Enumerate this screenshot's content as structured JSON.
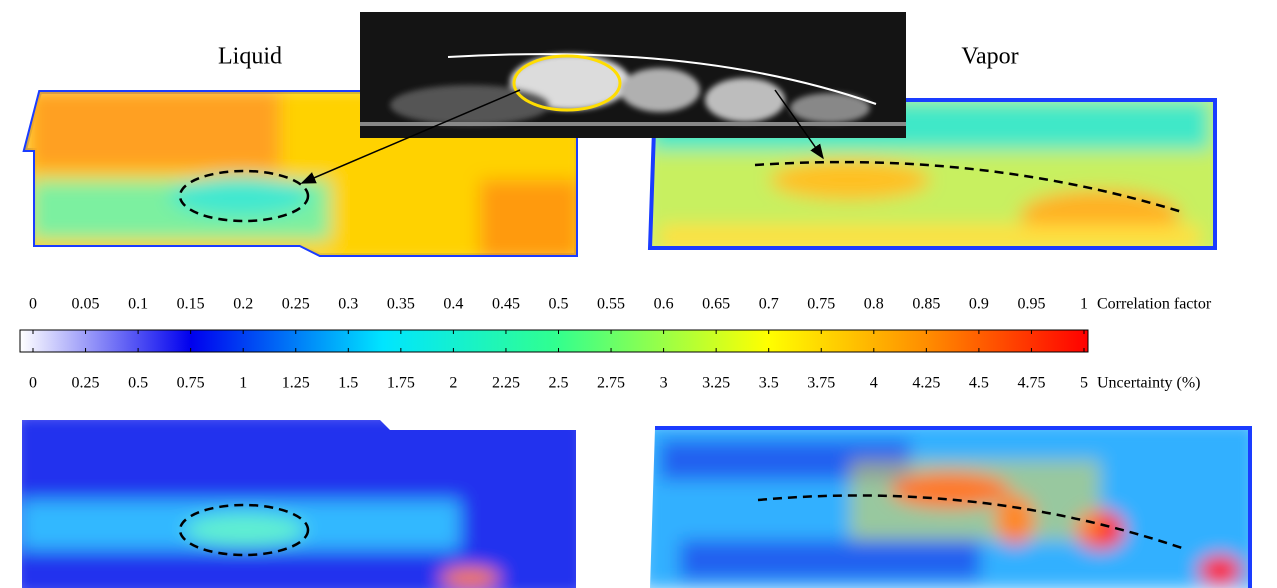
{
  "panels": {
    "left_title": "Liquid",
    "right_title": "Vapor"
  },
  "colorbar": {
    "top_label": "Correlation factor",
    "top_ticks": [
      0,
      0.05,
      0.1,
      0.15,
      0.2,
      0.25,
      0.3,
      0.35,
      0.4,
      0.45,
      0.5,
      0.55,
      0.6,
      0.65,
      0.7,
      0.75,
      0.8,
      0.85,
      0.9,
      0.95,
      1
    ],
    "bottom_label": "Uncertainty (%)",
    "bottom_ticks": [
      0,
      0.25,
      0.5,
      0.75,
      1,
      1.25,
      1.5,
      1.75,
      2,
      2.25,
      2.5,
      2.75,
      3,
      3.25,
      3.5,
      3.75,
      4,
      4.25,
      4.5,
      4.75,
      5
    ]
  }
}
